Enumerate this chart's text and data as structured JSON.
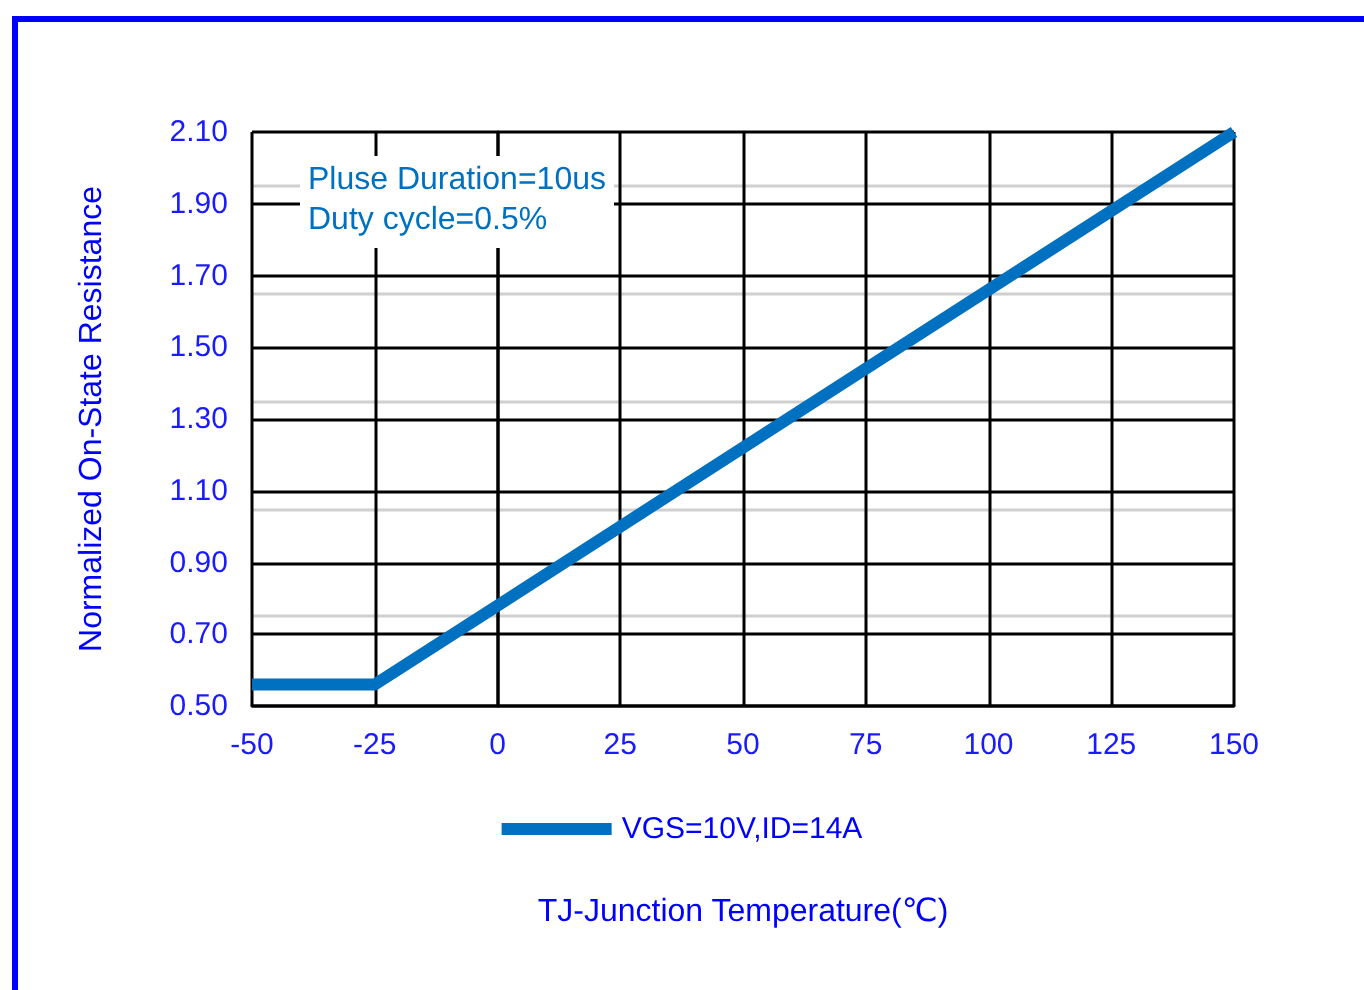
{
  "chart_data": {
    "type": "line",
    "xlabel": "TJ-Junction Temperature(℃)",
    "ylabel": "Normalized On-State Resistance",
    "x": [
      -50,
      -25,
      150
    ],
    "series": [
      {
        "name": "VGS=10V,ID=14A",
        "color": "#0070c0",
        "values": [
          0.56,
          0.56,
          2.1
        ]
      }
    ],
    "xlim": [
      -50,
      150
    ],
    "xticks": [
      -50,
      -25,
      0,
      25,
      50,
      75,
      100,
      125,
      150
    ],
    "ylim": [
      0.5,
      2.1
    ],
    "yticks": [
      {
        "value": 0.5,
        "label": "0.50"
      },
      {
        "value": 0.7,
        "label": "0.70"
      },
      {
        "value": 0.9,
        "label": "0.90"
      },
      {
        "value": 1.1,
        "label": "1.10"
      },
      {
        "value": 1.3,
        "label": "1.30"
      },
      {
        "value": 1.5,
        "label": "1.50"
      },
      {
        "value": 1.7,
        "label": "1.70"
      },
      {
        "value": 1.9,
        "label": "1.90"
      },
      {
        "value": 2.1,
        "label": "2.10"
      }
    ],
    "annotations": [
      "Pluse Duration=10us\nDuty cycle=0.5%"
    ],
    "grid": true,
    "legend": "bottom",
    "marker": "none",
    "line_style": "solid"
  }
}
